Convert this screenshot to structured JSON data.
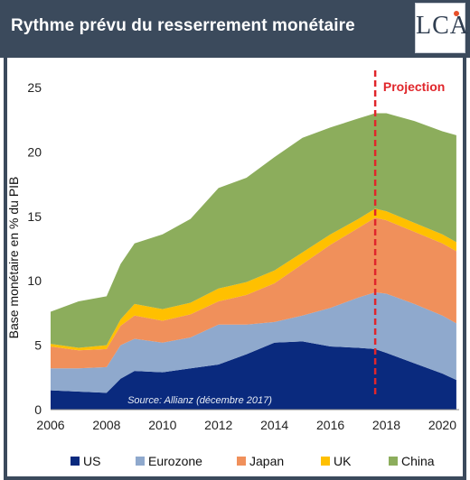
{
  "header": {
    "title": "Rythme prévu du resserrement monétaire",
    "logo_text": "LCA"
  },
  "chart_data": {
    "type": "area",
    "stacked": true,
    "title": "",
    "xlabel": "",
    "ylabel": "Base monétaire en % du PIB",
    "xlim": [
      2006,
      2020.6
    ],
    "ylim": [
      0,
      25
    ],
    "x_ticks": [
      "2006",
      "2008",
      "2010",
      "2012",
      "2014",
      "2016",
      "2018",
      "2020"
    ],
    "y_ticks": [
      "0",
      "5",
      "10",
      "15",
      "20",
      "25"
    ],
    "x": [
      2006,
      2007,
      2008,
      2008.5,
      2009,
      2010,
      2011,
      2012,
      2013,
      2014,
      2015,
      2016,
      2017,
      2017.6,
      2018,
      2019,
      2020,
      2020.5
    ],
    "series": [
      {
        "name": "US",
        "color": "#0a2a7e",
        "values": [
          1.5,
          1.4,
          1.3,
          2.4,
          3.0,
          2.9,
          3.2,
          3.5,
          4.3,
          5.2,
          5.3,
          4.9,
          4.8,
          4.7,
          4.4,
          3.6,
          2.8,
          2.3
        ]
      },
      {
        "name": "Eurozone",
        "color": "#8fa9cd",
        "values": [
          1.7,
          1.8,
          2.0,
          2.6,
          2.5,
          2.3,
          2.4,
          3.1,
          2.3,
          1.6,
          2.0,
          3.0,
          3.9,
          4.4,
          4.6,
          4.6,
          4.5,
          4.4
        ]
      },
      {
        "name": "Japan",
        "color": "#f0905b",
        "values": [
          1.7,
          1.4,
          1.4,
          1.5,
          1.8,
          1.7,
          1.8,
          1.8,
          2.3,
          3.0,
          4.0,
          4.9,
          5.4,
          5.8,
          5.7,
          5.6,
          5.6,
          5.6
        ]
      },
      {
        "name": "UK",
        "color": "#ffc000",
        "values": [
          0.2,
          0.2,
          0.3,
          0.5,
          0.9,
          0.9,
          0.9,
          1.0,
          1.0,
          1.0,
          0.9,
          0.8,
          0.7,
          0.7,
          0.7,
          0.7,
          0.7,
          0.7
        ]
      },
      {
        "name": "China",
        "color": "#8cad5c",
        "values": [
          2.5,
          3.6,
          3.8,
          4.3,
          4.7,
          5.8,
          6.5,
          7.8,
          8.1,
          8.8,
          8.9,
          8.3,
          7.8,
          7.4,
          7.6,
          7.9,
          8.0,
          8.3
        ]
      }
    ],
    "projection": {
      "label": "Projection",
      "x": 2017.6,
      "color": "#e0262b"
    },
    "annotation": "Source: Allianz (décembre 2017)",
    "legend_position": "bottom"
  }
}
